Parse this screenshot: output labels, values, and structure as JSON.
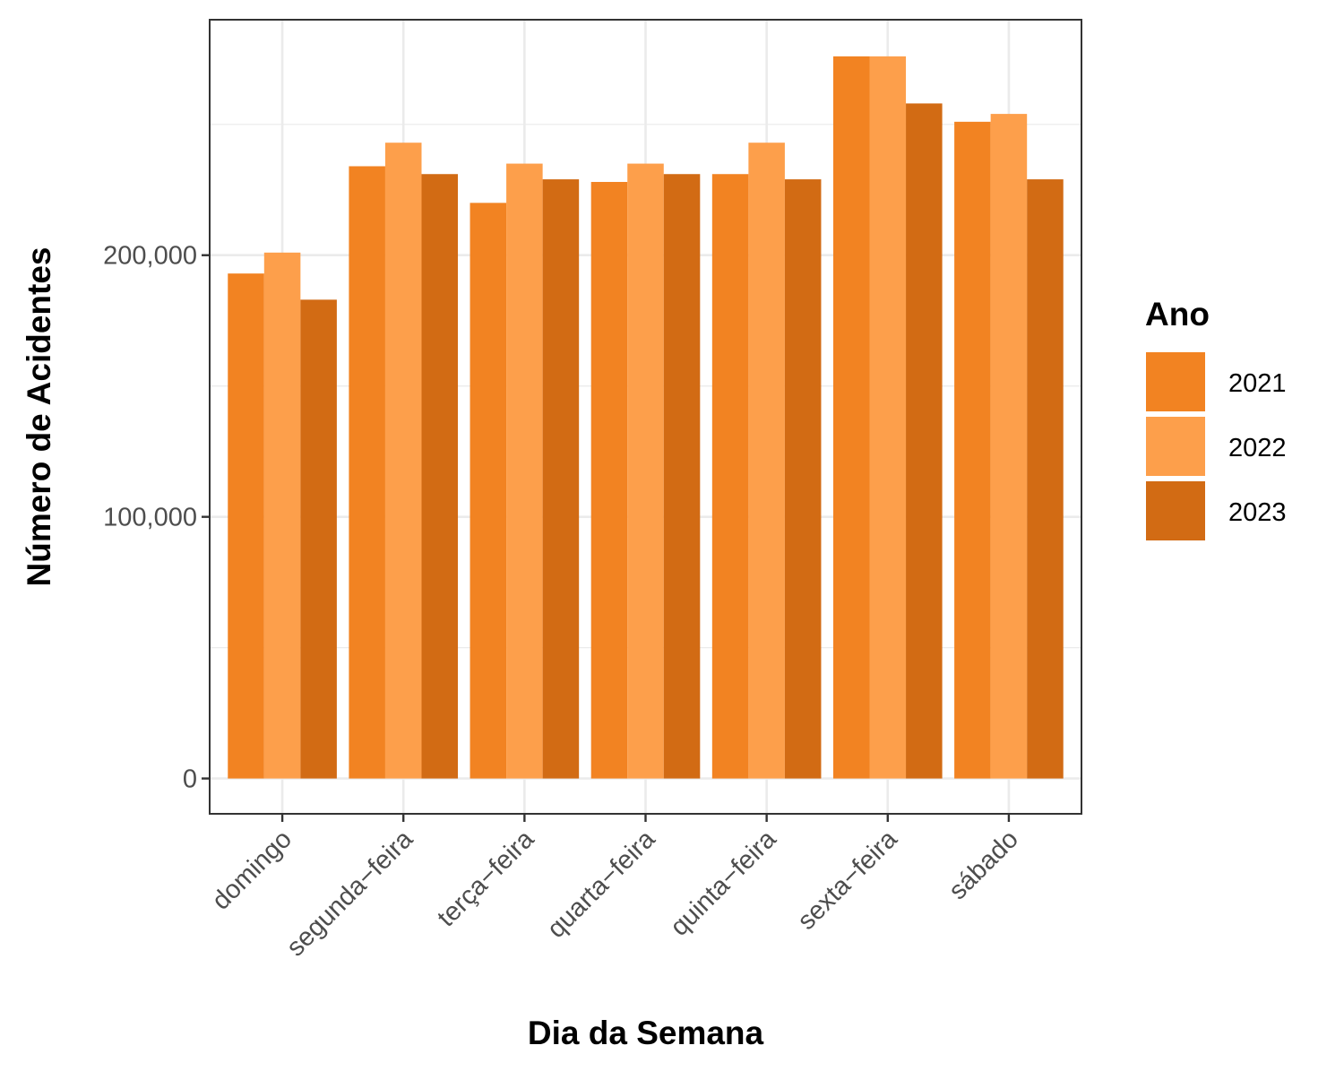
{
  "chart_data": {
    "type": "bar",
    "xlabel": "Dia da Semana",
    "ylabel": "Número de Acidentes",
    "categories": [
      "domingo",
      "segunda−feira",
      "terça−feira",
      "quarta−feira",
      "quinta−feira",
      "sexta−feira",
      "sábado"
    ],
    "series": [
      {
        "name": "2021",
        "color": "#f28322",
        "values": [
          193000,
          234000,
          220000,
          228000,
          231000,
          276000,
          251000
        ]
      },
      {
        "name": "2022",
        "color": "#fd9f4b",
        "values": [
          201000,
          243000,
          235000,
          235000,
          243000,
          276000,
          254000
        ]
      },
      {
        "name": "2023",
        "color": "#d26b14",
        "values": [
          183000,
          231000,
          229000,
          231000,
          229000,
          258000,
          229000
        ]
      }
    ],
    "ylim": [
      -13500,
      290000
    ],
    "yticks": [
      0,
      100000,
      200000
    ],
    "ytick_labels": [
      "0",
      "100,000",
      "200,000"
    ],
    "legend": {
      "title": "Ano",
      "position": "right",
      "items": [
        "2021",
        "2022",
        "2023"
      ]
    },
    "grid": true,
    "theme": "bw"
  }
}
